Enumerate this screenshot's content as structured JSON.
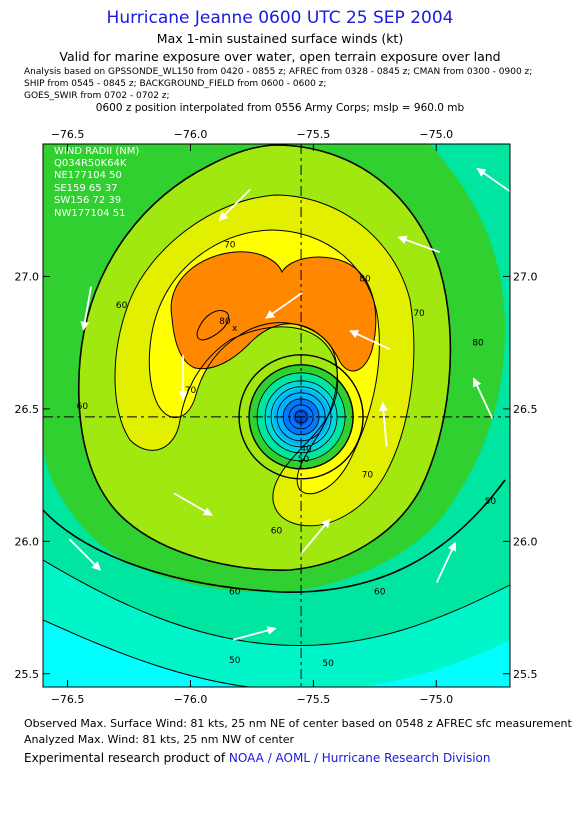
{
  "header": {
    "title": "Hurricane Jeanne 0600 UTC 25 SEP 2004",
    "subtitle": "Max 1-min sustained surface winds (kt)",
    "valid_line": "Valid for marine exposure over water, open terrain exposure over land",
    "analysis_text": "Analysis based on  GPSSONDE_WL150 from 0420 - 0855 z;  AFREC from 0328 - 0845 z;  CMAN from 0300 - 0900 z;\nSHIP from 0545 - 0845 z;  BACKGROUND_FIELD from 0600 - 0600 z;\nGOES_SWIR from 0702 - 0702 z;",
    "position_line": "0600 z position interpolated from 0556 Army Corps; mslp = 960.0 mb"
  },
  "legend": {
    "title": "WIND RADII (NM)",
    "header": "Q034R50K64K",
    "rows": [
      "NE177104 50",
      "SE159 65 37",
      "SW156 72 39",
      "NW177104 51"
    ]
  },
  "colors": {
    "bg": "#ffffff",
    "title": "#1a1adc",
    "cyan": "#00ffff",
    "aqua": "#00f5c8",
    "turquoise": "#00e6a0",
    "green": "#30d030",
    "lime": "#a0e810",
    "yellowgreen": "#e2f000",
    "yellow": "#ffff00",
    "orange": "#ff8800",
    "eye_blue": "#0078ff",
    "arrow": "#ffffff"
  },
  "chart_data": {
    "type": "contour",
    "xlabel": "",
    "ylabel": "",
    "xlim": [
      -76.6,
      -74.7
    ],
    "ylim": [
      25.45,
      27.5
    ],
    "x_ticks": [
      -76.5,
      -76.0,
      -75.5,
      -75.0
    ],
    "y_ticks": [
      25.5,
      26.0,
      26.5,
      27.0
    ],
    "x_tick_labels": [
      "−76.5",
      "−76.0",
      "−75.5",
      "−75.0"
    ],
    "y_tick_labels": [
      "25.5",
      "26.0",
      "26.5",
      "27.0"
    ],
    "center": {
      "lon": -75.55,
      "lat": 26.47
    },
    "max_wind_marker": {
      "lon": -75.82,
      "lat": 26.81,
      "symbol": "x"
    },
    "contour_levels_kt": [
      40,
      50,
      60,
      70,
      80
    ],
    "contour_labels": [
      {
        "text": "80",
        "lon": -75.86,
        "lat": 26.82
      },
      {
        "text": "80",
        "lon": -75.29,
        "lat": 26.98
      },
      {
        "text": "80",
        "lon": -74.83,
        "lat": 26.74
      },
      {
        "text": "70",
        "lon": -75.84,
        "lat": 27.11
      },
      {
        "text": "70",
        "lon": -75.07,
        "lat": 26.85
      },
      {
        "text": "70",
        "lon": -76.0,
        "lat": 26.56
      },
      {
        "text": "70",
        "lon": -75.28,
        "lat": 26.24
      },
      {
        "text": "60",
        "lon": -76.28,
        "lat": 26.88
      },
      {
        "text": "60",
        "lon": -76.44,
        "lat": 26.5
      },
      {
        "text": "60",
        "lon": -75.65,
        "lat": 26.03
      },
      {
        "text": "60",
        "lon": -75.82,
        "lat": 25.8
      },
      {
        "text": "60",
        "lon": -75.23,
        "lat": 25.8
      },
      {
        "text": "50",
        "lon": -75.54,
        "lat": 26.3
      },
      {
        "text": "50",
        "lon": -75.82,
        "lat": 25.54
      },
      {
        "text": "50",
        "lon": -75.44,
        "lat": 25.53
      },
      {
        "text": "50",
        "lon": -74.78,
        "lat": 26.14
      },
      {
        "text": "40",
        "lon": -75.53,
        "lat": 26.34
      }
    ],
    "wind_arrows": [
      {
        "lon": -75.82,
        "lat": 27.27,
        "dir": 225
      },
      {
        "lon": -75.07,
        "lat": 27.12,
        "dir": 290
      },
      {
        "lon": -74.76,
        "lat": 27.36,
        "dir": 305
      },
      {
        "lon": -75.62,
        "lat": 26.89,
        "dir": 235
      },
      {
        "lon": -75.27,
        "lat": 26.76,
        "dir": 295
      },
      {
        "lon": -76.42,
        "lat": 26.88,
        "dir": 190
      },
      {
        "lon": -76.03,
        "lat": 26.62,
        "dir": 180
      },
      {
        "lon": -75.21,
        "lat": 26.44,
        "dir": 355
      },
      {
        "lon": -74.81,
        "lat": 26.54,
        "dir": 335
      },
      {
        "lon": -75.99,
        "lat": 26.14,
        "dir": 120
      },
      {
        "lon": -75.49,
        "lat": 26.02,
        "dir": 40
      },
      {
        "lon": -76.43,
        "lat": 25.95,
        "dir": 135
      },
      {
        "lon": -74.96,
        "lat": 25.92,
        "dir": 25
      },
      {
        "lon": -75.74,
        "lat": 25.65,
        "dir": 75
      }
    ]
  },
  "footer": {
    "observed": "Observed Max. Surface Wind: 81 kts, 25 nm NE of center based on 0548 z AFREC sfc measurement",
    "analyzed": "Analyzed Max. Wind: 81 kts, 25 nm NW of center",
    "credit_prefix": "Experimental research product of ",
    "credit_org": "NOAA / AOML / Hurricane Research Division"
  }
}
